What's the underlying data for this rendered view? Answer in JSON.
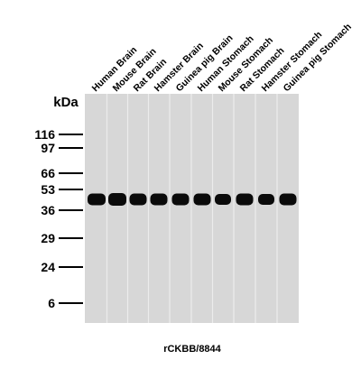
{
  "y_axis_unit": "kDa",
  "markers": [
    "116",
    "97",
    "66",
    "53",
    "36",
    "29",
    "24",
    "6"
  ],
  "lanes": [
    "Human Brain",
    "Mouse Brain",
    "Rat Brain",
    "Hamster Brain",
    "Guinea pig Brain",
    "Human Stomach",
    "Mouse Stomach",
    "Rat Stomach",
    "Hamster Stomach",
    "Guinea pig Stomach"
  ],
  "caption": "rCKBB/8844",
  "colors": {
    "membrane": "#d7d7d7",
    "lane_divider": "#ececec",
    "band": "#0a0a0a",
    "text": "#000000"
  }
}
